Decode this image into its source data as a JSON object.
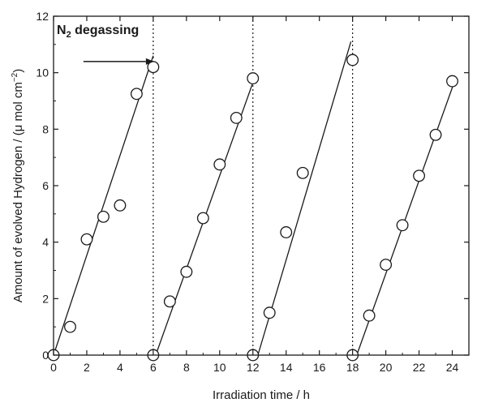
{
  "chart_data": {
    "type": "scatter",
    "title": "",
    "xlabel": "Irradiation time / h",
    "ylabel_parts": {
      "prefix": "Amount of evolved Hydrogen / (",
      "mu": "μ",
      "unit": " mol cm",
      "exponent": "−2",
      "suffix": ")"
    },
    "xlim": [
      0,
      25
    ],
    "ylim": [
      0,
      12
    ],
    "x_ticks": [
      0,
      2,
      4,
      6,
      8,
      10,
      12,
      14,
      16,
      18,
      20,
      22,
      24
    ],
    "y_ticks": [
      0,
      2,
      4,
      6,
      8,
      10,
      12
    ],
    "grid": false,
    "annotation": {
      "text_n": "N",
      "text_sub": "2",
      "text_rest": " degassing",
      "arrow_from_x": 1.8,
      "arrow_to_x": 6.0,
      "arrow_y": 11.2
    },
    "divider_x": [
      6,
      12,
      18
    ],
    "cycles": [
      {
        "points": [
          [
            0,
            0
          ],
          [
            1,
            1.0
          ],
          [
            2,
            4.1
          ],
          [
            3,
            4.9
          ],
          [
            4,
            5.3
          ],
          [
            5,
            9.25
          ],
          [
            6,
            10.2
          ]
        ],
        "fit": [
          [
            0,
            0
          ],
          [
            6,
            10.6
          ]
        ]
      },
      {
        "points": [
          [
            6,
            0
          ],
          [
            7,
            1.9
          ],
          [
            8,
            2.95
          ],
          [
            9,
            4.85
          ],
          [
            10,
            6.75
          ],
          [
            11,
            8.4
          ],
          [
            12,
            9.8
          ]
        ],
        "fit": [
          [
            6.15,
            0
          ],
          [
            12.15,
            9.9
          ]
        ]
      },
      {
        "points": [
          [
            12,
            0
          ],
          [
            13,
            1.5
          ],
          [
            14,
            4.35
          ],
          [
            15,
            6.45
          ],
          [
            18,
            10.45
          ]
        ],
        "fit": [
          [
            12.3,
            0
          ],
          [
            17.9,
            11.1
          ]
        ]
      },
      {
        "points": [
          [
            18,
            0
          ],
          [
            19,
            1.4
          ],
          [
            20,
            3.2
          ],
          [
            21,
            4.6
          ],
          [
            22,
            6.35
          ],
          [
            23,
            7.8
          ],
          [
            24,
            9.7
          ]
        ],
        "fit": [
          [
            18.25,
            0
          ],
          [
            24.2,
            9.8
          ]
        ]
      }
    ]
  }
}
